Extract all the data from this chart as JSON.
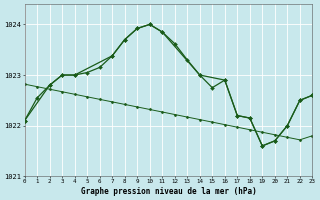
{
  "title": "Graphe pression niveau de la mer (hPa)",
  "bg_color": "#c8e8ec",
  "grid_color": "#ffffff",
  "line_color": "#1a5c1a",
  "xlim": [
    0,
    23
  ],
  "ylim": [
    1021.0,
    1024.4
  ],
  "yticks": [
    1021,
    1022,
    1023,
    1024
  ],
  "xticks": [
    0,
    1,
    2,
    3,
    4,
    5,
    6,
    7,
    8,
    9,
    10,
    11,
    12,
    13,
    14,
    15,
    16,
    17,
    18,
    19,
    20,
    21,
    22,
    23
  ],
  "line1_x": [
    0,
    1,
    2,
    3,
    4,
    5,
    6,
    7,
    8,
    9,
    10,
    11,
    12,
    13,
    14,
    15,
    16,
    17,
    18,
    19,
    20,
    21,
    22,
    23
  ],
  "line1_y": [
    1022.1,
    1022.55,
    1022.8,
    1023.0,
    1023.0,
    1023.05,
    1023.15,
    1023.38,
    1023.7,
    1023.92,
    1024.0,
    1023.85,
    1023.62,
    1023.3,
    1023.0,
    1022.75,
    1022.9,
    1022.2,
    1022.15,
    1021.6,
    1021.7,
    1022.0,
    1022.5,
    1022.6
  ],
  "line2_x": [
    0,
    1,
    2,
    3,
    4,
    5,
    6,
    7,
    8,
    9,
    10,
    11,
    12,
    13,
    14,
    15,
    16,
    17,
    18,
    19,
    20,
    21,
    22,
    23
  ],
  "line2_y": [
    1022.82,
    1022.77,
    1022.72,
    1022.67,
    1022.62,
    1022.57,
    1022.52,
    1022.47,
    1022.42,
    1022.37,
    1022.32,
    1022.27,
    1022.22,
    1022.17,
    1022.12,
    1022.07,
    1022.02,
    1021.97,
    1021.92,
    1021.87,
    1021.82,
    1021.77,
    1021.72,
    1021.8
  ],
  "line3_x": [
    0,
    2,
    3,
    4,
    7,
    8,
    9,
    10,
    11,
    14,
    16,
    17,
    18,
    19,
    20,
    21,
    22,
    23
  ],
  "line3_y": [
    1022.1,
    1022.8,
    1023.0,
    1023.0,
    1023.38,
    1023.7,
    1023.92,
    1024.0,
    1023.85,
    1023.0,
    1022.9,
    1022.2,
    1022.15,
    1021.6,
    1021.7,
    1022.0,
    1022.5,
    1022.6
  ]
}
